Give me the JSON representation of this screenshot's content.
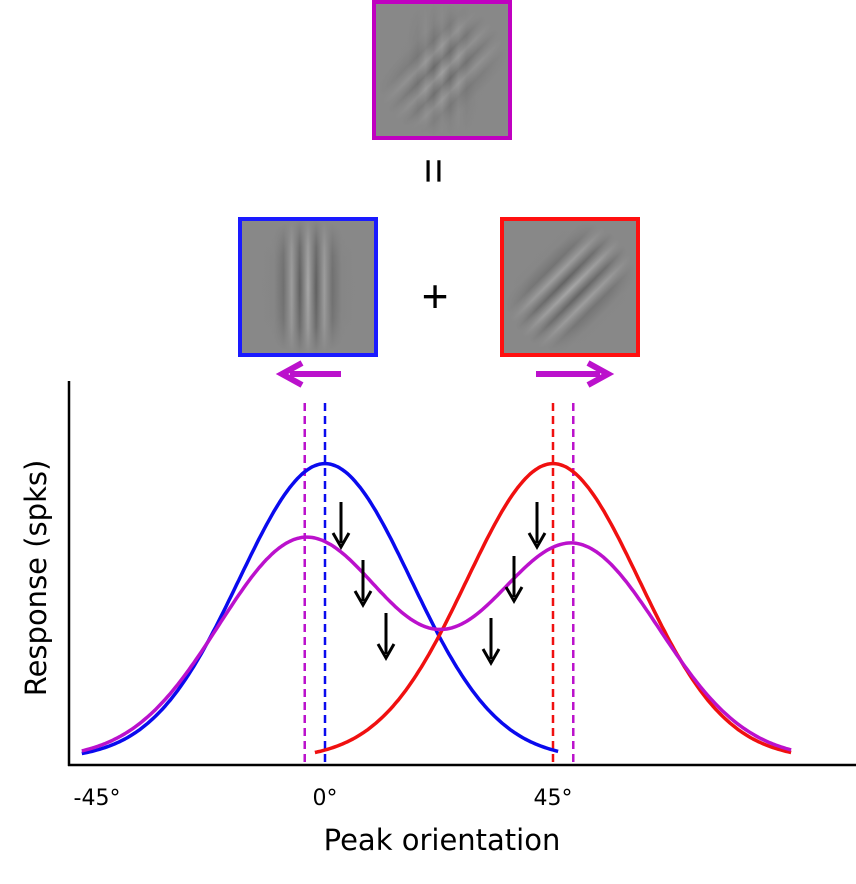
{
  "symbols": {
    "equals": "=",
    "plus": "+"
  },
  "stimuli": {
    "compound": {
      "border_color": "#c000c0"
    },
    "vertical": {
      "border_color": "#1a1aff"
    },
    "oblique": {
      "border_color": "#ff1010"
    }
  },
  "colors": {
    "blue": "#0a0aee",
    "red": "#f01010",
    "magenta": "#bb11cc",
    "axis": "#000000"
  },
  "chart_data": {
    "type": "line",
    "xlabel": "Peak orientation",
    "ylabel": "Response (spks)",
    "x_tick_labels": [
      "-45°",
      "0°",
      "45°"
    ],
    "x_ticks": [
      -45,
      0,
      45
    ],
    "xlim": [
      -48,
      102
    ],
    "ylim": [
      0,
      1.2
    ],
    "series": [
      {
        "color_key": "blue",
        "peak_x": 0,
        "peak_y": 1.0,
        "x_range": [
          -48,
          46
        ]
      },
      {
        "color_key": "red",
        "peak_x": 45,
        "peak_y": 1.0,
        "x_range": [
          -2,
          92
        ]
      },
      {
        "color_key": "magenta",
        "peak_x": -4,
        "peak_y": 0.74,
        "x_range": [
          -48,
          92
        ]
      },
      {
        "color_key": "magenta",
        "peak_x": 49,
        "peak_y": 0.72
      }
    ],
    "dashed_markers": [
      {
        "x": 0,
        "color_key": "blue"
      },
      {
        "x": -4,
        "color_key": "magenta"
      },
      {
        "x": 45,
        "color_key": "red"
      },
      {
        "x": 49,
        "color_key": "magenta"
      }
    ],
    "shift_arrows": [
      {
        "direction": "left",
        "color_key": "magenta"
      },
      {
        "direction": "right",
        "color_key": "magenta"
      }
    ]
  }
}
